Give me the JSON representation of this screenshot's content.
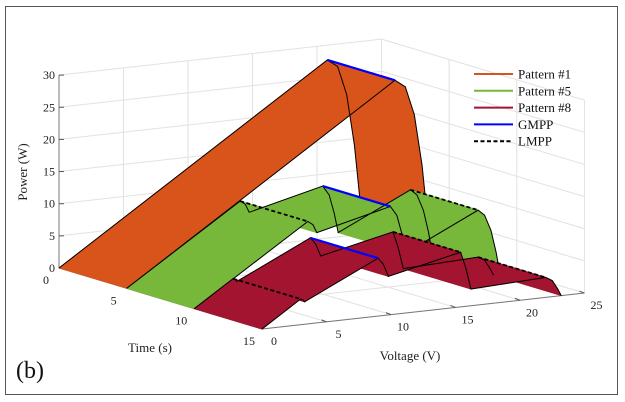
{
  "panel_label": "(b)",
  "chart_data": {
    "type": "3d-ribbon",
    "xlabel": "Voltage (V)",
    "ylabel": "Time (s)",
    "zlabel": "Power (W)",
    "xlim": [
      0,
      25
    ],
    "ylim": [
      0,
      15
    ],
    "zlim": [
      0,
      30
    ],
    "xticks": [
      "0",
      "5",
      "10",
      "15",
      "20",
      "25"
    ],
    "yticks": [
      "0",
      "5",
      "10",
      "15"
    ],
    "zticks": [
      "0",
      "5",
      "10",
      "15",
      "20",
      "25",
      "30"
    ],
    "grid": true,
    "legend_position": "top-right",
    "legend": [
      {
        "label": "Pattern #1",
        "color": "#D9541A",
        "style": "solid"
      },
      {
        "label": "Pattern #5",
        "color": "#77B83A",
        "style": "solid"
      },
      {
        "label": "Pattern #8",
        "color": "#A2142F",
        "style": "solid"
      },
      {
        "label": "GMPP",
        "color": "#0000FF",
        "style": "solid"
      },
      {
        "label": "LMPP",
        "color": "#000000",
        "style": "dashed"
      }
    ],
    "series": [
      {
        "name": "Pattern #1",
        "color": "#D9541A",
        "time": [
          0,
          5
        ],
        "voltage": [
          0,
          20.8,
          21.6,
          22.3,
          22.9,
          23.3,
          23.5
        ],
        "power": [
          0,
          27.7,
          26.5,
          22,
          14,
          6,
          0
        ],
        "gmpp_voltage": 20.8,
        "lmpp_voltages": []
      },
      {
        "name": "Pattern #5",
        "color": "#77B83A",
        "time": [
          5,
          10
        ],
        "voltage": [
          0,
          8.8,
          9.2,
          9.5,
          15.2,
          15.7,
          16.1,
          16.4,
          22,
          22.5,
          23,
          23.4,
          23.7
        ],
        "power": [
          0,
          11.6,
          11,
          9.7,
          12.5,
          11,
          8,
          5,
          10.4,
          9.5,
          7,
          3.5,
          0
        ],
        "gmpp_voltage": 15.2,
        "lmpp_voltages": [
          8.8,
          22
        ]
      },
      {
        "name": "Pattern #8",
        "color": "#A2142F",
        "time": [
          10,
          15
        ],
        "voltage": [
          0,
          3,
          3.2,
          3.3,
          9,
          9.4,
          9.8,
          15.4,
          15.8,
          16.2,
          22,
          22.5,
          22.9,
          23.2
        ],
        "power": [
          0,
          4,
          3.8,
          3.5,
          9,
          8,
          6,
          8.5,
          6,
          2.6,
          3.1,
          2.5,
          1.2,
          0
        ],
        "gmpp_voltage": 9,
        "lmpp_voltages": [
          3,
          15.4,
          22
        ]
      }
    ]
  }
}
